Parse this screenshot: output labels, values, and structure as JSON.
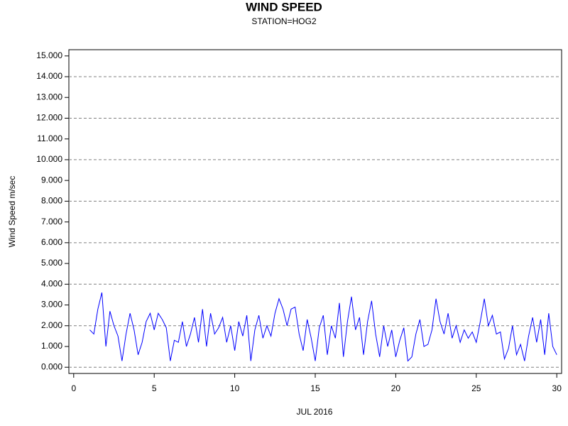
{
  "chart_data": {
    "type": "line",
    "title": "WIND SPEED",
    "subtitle": "STATION=HOG2",
    "xlabel": "JUL 2016",
    "ylabel": "Wind Speed m/sec",
    "xlim": [
      -0.3,
      30.3
    ],
    "ylim": [
      -0.3,
      15.3
    ],
    "xticks": [
      0,
      5,
      10,
      15,
      20,
      25,
      30
    ],
    "yticks": [
      {
        "value": 0,
        "label": "0.000"
      },
      {
        "value": 1,
        "label": "1.000"
      },
      {
        "value": 2,
        "label": "2.000"
      },
      {
        "value": 3,
        "label": "3.000"
      },
      {
        "value": 4,
        "label": "4.000"
      },
      {
        "value": 5,
        "label": "5.000"
      },
      {
        "value": 6,
        "label": "6.000"
      },
      {
        "value": 7,
        "label": "7.000"
      },
      {
        "value": 8,
        "label": "8.000"
      },
      {
        "value": 9,
        "label": "9.000"
      },
      {
        "value": 10,
        "label": "10.000"
      },
      {
        "value": 11,
        "label": "11.000"
      },
      {
        "value": 12,
        "label": "12.000"
      },
      {
        "value": 13,
        "label": "13.000"
      },
      {
        "value": 14,
        "label": "14.000"
      },
      {
        "value": 15,
        "label": "15.000"
      }
    ],
    "grid_lines": [
      0,
      2,
      4,
      6,
      8,
      10,
      12,
      14
    ],
    "x": [
      1,
      1.25,
      1.5,
      1.75,
      2,
      2.25,
      2.5,
      2.75,
      3,
      3.25,
      3.5,
      3.75,
      4,
      4.25,
      4.5,
      4.75,
      5,
      5.25,
      5.5,
      5.75,
      6,
      6.25,
      6.5,
      6.75,
      7,
      7.25,
      7.5,
      7.75,
      8,
      8.25,
      8.5,
      8.75,
      9,
      9.25,
      9.5,
      9.75,
      10,
      10.25,
      10.5,
      10.75,
      11,
      11.25,
      11.5,
      11.75,
      12,
      12.25,
      12.5,
      12.75,
      13,
      13.25,
      13.5,
      13.75,
      14,
      14.25,
      14.5,
      14.75,
      15,
      15.25,
      15.5,
      15.75,
      16,
      16.25,
      16.5,
      16.75,
      17,
      17.25,
      17.5,
      17.75,
      18,
      18.25,
      18.5,
      18.75,
      19,
      19.25,
      19.5,
      19.75,
      20,
      20.25,
      20.5,
      20.75,
      21,
      21.25,
      21.5,
      21.75,
      22,
      22.25,
      22.5,
      22.75,
      23,
      23.25,
      23.5,
      23.75,
      24,
      24.25,
      24.5,
      24.75,
      25,
      25.25,
      25.5,
      25.75,
      26,
      26.25,
      26.5,
      26.75,
      27,
      27.25,
      27.5,
      27.75,
      28,
      28.25,
      28.5,
      28.75,
      29,
      29.25,
      29.5,
      29.75,
      30
    ],
    "series": [
      {
        "color": "#0000ff",
        "values": [
          1.8,
          1.6,
          2.8,
          3.6,
          1.0,
          2.7,
          2.0,
          1.5,
          0.3,
          1.6,
          2.6,
          1.8,
          0.6,
          1.2,
          2.2,
          2.6,
          1.8,
          2.6,
          2.3,
          1.9,
          0.3,
          1.3,
          1.2,
          2.2,
          1.0,
          1.6,
          2.4,
          1.2,
          2.8,
          1.0,
          2.6,
          1.6,
          1.9,
          2.4,
          1.2,
          2.0,
          0.8,
          2.2,
          1.5,
          2.5,
          0.3,
          1.8,
          2.5,
          1.4,
          2.0,
          1.5,
          2.6,
          3.3,
          2.8,
          2.0,
          2.8,
          2.9,
          1.6,
          0.8,
          2.3,
          1.4,
          0.3,
          1.9,
          2.5,
          0.6,
          2.0,
          1.4,
          3.1,
          0.5,
          2.2,
          3.4,
          1.8,
          2.4,
          0.6,
          2.2,
          3.2,
          1.6,
          0.5,
          2.0,
          1.0,
          1.8,
          0.5,
          1.3,
          1.9,
          0.3,
          0.5,
          1.6,
          2.3,
          1.0,
          1.1,
          1.8,
          3.3,
          2.2,
          1.6,
          2.6,
          1.4,
          2.0,
          1.2,
          1.8,
          1.4,
          1.7,
          1.2,
          2.2,
          3.3,
          2.0,
          2.5,
          1.6,
          1.7,
          0.4,
          0.9,
          2.0,
          0.6,
          1.1,
          0.3,
          1.5,
          2.4,
          1.2,
          2.3,
          0.6,
          2.6,
          1.0,
          0.6
        ]
      }
    ]
  }
}
